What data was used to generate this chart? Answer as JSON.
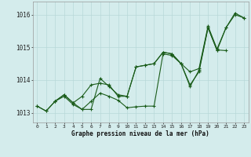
{
  "title": "Graphe pression niveau de la mer (hPa)",
  "bg_color": "#d4ecec",
  "grid_color": "#b8d8d8",
  "line_color": "#1a5c1a",
  "ylim": [
    1012.7,
    1016.4
  ],
  "yticks": [
    1013,
    1014,
    1015,
    1016
  ],
  "xlim": [
    -0.5,
    23.5
  ],
  "s1_x": [
    0,
    1,
    2,
    3,
    4,
    5,
    6,
    7,
    8,
    9,
    10,
    11,
    12,
    13,
    14,
    15,
    16,
    17,
    18,
    19,
    20,
    21,
    22,
    23
  ],
  "s1_y": [
    1013.2,
    1013.05,
    1013.35,
    1013.5,
    1013.25,
    1013.1,
    1013.35,
    1013.6,
    1013.5,
    1013.38,
    1013.15,
    1013.18,
    1013.2,
    1013.2,
    1014.8,
    1014.75,
    1014.5,
    1013.8,
    1014.3,
    1015.6,
    1014.9,
    1015.6,
    1016.05,
    1015.9
  ],
  "s2_x": [
    0,
    1,
    2,
    3,
    4,
    5,
    6,
    7,
    8,
    9,
    10,
    11,
    12,
    13,
    14,
    15,
    16,
    17,
    18,
    19,
    20,
    21,
    22,
    23
  ],
  "s2_y": [
    1013.2,
    1013.05,
    1013.35,
    1013.55,
    1013.3,
    1013.5,
    1013.85,
    1013.9,
    1013.85,
    1013.5,
    1013.5,
    1014.4,
    1014.45,
    1014.5,
    1014.85,
    1014.8,
    1014.5,
    1014.25,
    1014.35,
    1015.65,
    1014.95,
    1015.6,
    1016.0,
    1015.9
  ],
  "s3_x": [
    2,
    3,
    4,
    5,
    6,
    7,
    8,
    9,
    10,
    11,
    12,
    13,
    14,
    15,
    16,
    17,
    18,
    19,
    20,
    21
  ],
  "s3_y": [
    1013.35,
    1013.55,
    1013.3,
    1013.1,
    1013.1,
    1014.05,
    1013.8,
    1013.55,
    1013.5,
    1014.4,
    1014.45,
    1014.5,
    1014.85,
    1014.8,
    1014.5,
    1013.85,
    1014.25,
    1015.6,
    1014.92,
    1014.9
  ]
}
